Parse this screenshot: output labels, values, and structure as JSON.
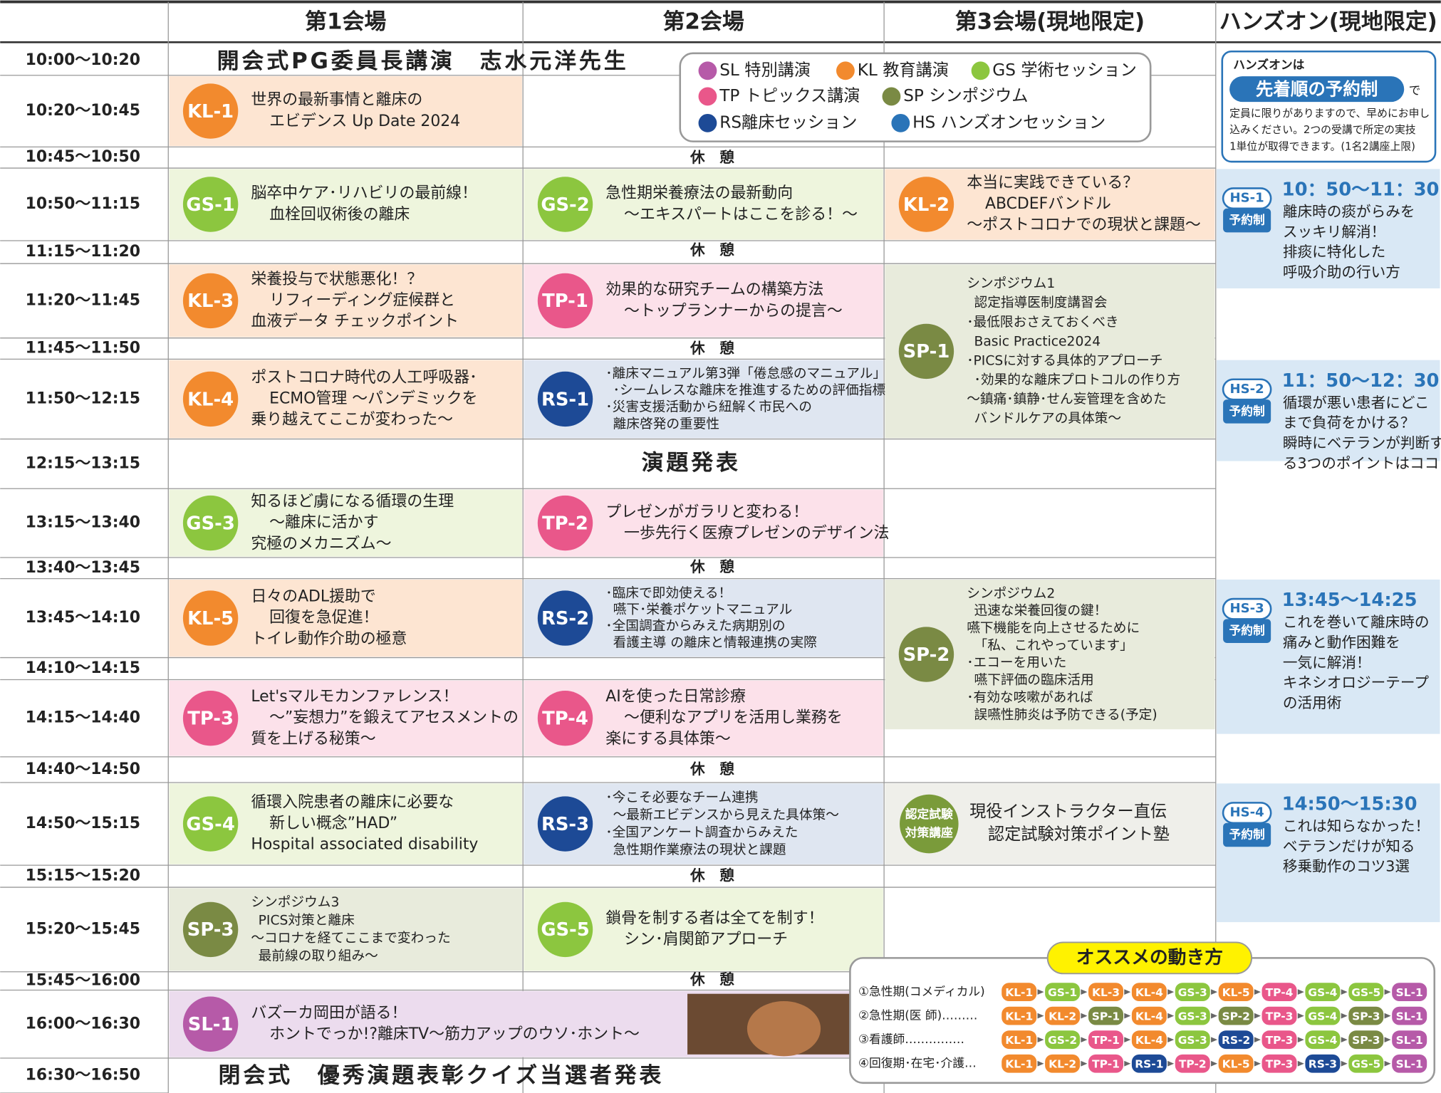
{
  "header": {
    "columns": [
      "第1会場",
      "第2会場",
      "第3会場(現地限定)",
      "ハンズオン(現地限定)"
    ]
  },
  "palette": {
    "KL": [
      "#f28a2e",
      "#fde5d2"
    ],
    "GS": [
      "#8cc63f",
      "#eef5dd"
    ],
    "TP": [
      "#e9578a",
      "#fce1ea"
    ],
    "RS": [
      "#1d4a96",
      "#dfe6f1"
    ],
    "SP": [
      "#7a8a44",
      "#e8ebdc"
    ],
    "SL": [
      "#b65aa8",
      "#ecdcee"
    ],
    "HS": [
      "#2a74b8",
      "#d9e8f5"
    ]
  },
  "times": [
    "10:00～10:20",
    "10:20～10:45",
    "10:45～10:50",
    "10:50～11:15",
    "11:15～11:20",
    "11:20～11:45",
    "11:45～11:50",
    "11:50～12:15",
    "12:15～13:15",
    "13:15～13:40",
    "13:40～13:45",
    "13:45～14:10",
    "14:10～14:15",
    "14:15～14:40",
    "14:40～14:50",
    "14:50～15:15",
    "15:15～15:20",
    "15:20～15:45",
    "15:45～16:00",
    "16:00～16:30",
    "16:30～16:50"
  ],
  "plenary": [
    "開会式PG委員長講演　志水元洋先生",
    "演題発表",
    "閉会式　優秀演題表彰クイズ当選者発表"
  ],
  "breaks": [
    "休　憩",
    "休　憩",
    "休　憩",
    "休　憩",
    "休　憩",
    "休　憩",
    "休　憩"
  ],
  "legend": [
    "SL 特別講演",
    "KL 教育講演",
    "GS 学術セッション",
    "TP トピックス講演",
    "SP シンポジウム",
    "RS離床セッション",
    "HS ハンズオンセッション"
  ],
  "sessions": [
    {
      "code": "KL-1",
      "lines": [
        "世界の最新事情と離床の",
        "エビデンス Up Date 2024"
      ]
    },
    {
      "code": "GS-1",
      "lines": [
        "脳卒中ケア･リハビリの最前線！",
        "血栓回収術後の離床"
      ]
    },
    {
      "code": "GS-2",
      "lines": [
        "急性期栄養療法の最新動向",
        "～エキスパートはここを診る！～"
      ]
    },
    {
      "code": "KL-2",
      "lines": [
        "本当に実践できている？",
        "ABCDEFバンドル",
        "～ポストコロナでの現状と課題～"
      ]
    },
    {
      "code": "KL-3",
      "lines": [
        "栄養投与で状態悪化！？",
        "リフィーディング症候群と",
        "血液データ チェックポイント"
      ]
    },
    {
      "code": "TP-1",
      "lines": [
        "効果的な研究チームの構築方法",
        "～トップランナーからの提言～"
      ]
    },
    {
      "code": "SP-1",
      "lines": [
        "シンポジウム1",
        "認定指導医制度講習会",
        "･最低限おさえておくべき",
        "Basic Practice2024",
        "･PICSに対する具体的アプローチ",
        "･効果的な離床プロトコルの作り方",
        "～鎮痛･鎮静･せん妄管理を含めた",
        "バンドルケアの具体策～"
      ]
    },
    {
      "code": "KL-4",
      "lines": [
        "ポストコロナ時代の人工呼吸器･",
        "ECMO管理 ～パンデミックを",
        "乗り越えてここが変わった～"
      ]
    },
    {
      "code": "RS-1",
      "lines": [
        "･離床マニュアル第3弾「倦怠感のマニュアル」",
        "･シームレスな離床を推進するための評価指標",
        "･災害支援活動から紐解く市民への",
        "離床啓発の重要性"
      ]
    },
    {
      "code": "GS-3",
      "lines": [
        "知るほど虜になる循環の生理",
        "～離床に活かす",
        "究極のメカニズム～"
      ]
    },
    {
      "code": "TP-2",
      "lines": [
        "プレゼンがガラリと変わる！",
        "一歩先行く医療プレゼンのデザイン法"
      ]
    },
    {
      "code": "KL-5",
      "lines": [
        "日々のADL援助で",
        "回復を急促進！",
        "トイレ動作介助の極意"
      ]
    },
    {
      "code": "RS-2",
      "lines": [
        "･臨床で即効使える！",
        "嚥下･栄養ポケットマニュアル",
        "･全国調査からみえた病期別の",
        "看護主導 の離床と情報連携の実際"
      ]
    },
    {
      "code": "SP-2",
      "lines": [
        "シンポジウム2",
        "迅速な栄養回復の鍵！",
        "嚥下機能を向上させるために",
        "「私、これやっています」",
        "･エコーを用いた",
        "嚥下評価の臨床活用",
        "･有効な咳嗽があれば",
        "誤嚥性肺炎は予防できる(予定)"
      ]
    },
    {
      "code": "TP-3",
      "lines": [
        "Let'sマルモカンファレンス！",
        "～”妄想力”を鍛えてアセスメントの",
        "質を上げる秘策～"
      ]
    },
    {
      "code": "TP-4",
      "lines": [
        "AIを使った日常診療",
        "～便利なアプリを活用し業務を",
        "楽にする具体策～"
      ]
    },
    {
      "code": "GS-4",
      "lines": [
        "循環入院患者の離床に必要な",
        "新しい概念”HAD”",
        "Hospital associated disability"
      ]
    },
    {
      "code": "RS-3",
      "lines": [
        "･今こそ必要なチーム連携",
        "～最新エビデンスから見えた具体策～",
        "･全国アンケート調査からみえた",
        "急性期作業療法の現状と課題"
      ]
    },
    {
      "code": "SP-3",
      "lines": [
        "シンポジウム3",
        "PICS対策と離床",
        "～コロナを経てここまで変わった",
        "最前線の取り組み～"
      ]
    },
    {
      "code": "GS-5",
      "lines": [
        "鎖骨を制する者は全てを制す！",
        "シン･肩関節アプローチ"
      ]
    },
    {
      "code": "SL-1",
      "lines": [
        "バズーカ岡田が語る！",
        "ホントでっか!?離床TV～筋力アップのウソ･ホント～"
      ]
    }
  ],
  "exam": {
    "badge": [
      "認定試験",
      "対策講座"
    ],
    "lines": [
      "現役インストラクター直伝",
      "認定試験対策ポイント塾"
    ]
  },
  "handson_note": {
    "title": "ハンズオンは",
    "highlight": "先着順の予約制",
    "suffix": "で",
    "lines": [
      "定員に限りがありますので、早めにお申し",
      "込みください。2つの受講で所定の実技",
      "1単位が取得できます。(1名2講座上限)"
    ]
  },
  "handson": [
    {
      "code": "HS-1",
      "badge": "予約制",
      "time": "10：50～11：30",
      "lines": [
        "離床時の痰がらみを",
        "スッキリ解消！",
        "排痰に特化した",
        "呼吸介助の行い方"
      ]
    },
    {
      "code": "HS-2",
      "badge": "予約制",
      "time": "11：50～12：30",
      "lines": [
        "循環が悪い患者にどこ",
        "まで負荷をかける？",
        "瞬時にベテランが判断す",
        "る3つのポイントはココ"
      ]
    },
    {
      "code": "HS-3",
      "badge": "予約制",
      "time": "13:45～14:25",
      "lines": [
        "これを巻いて離床時の",
        "痛みと動作困難を",
        "一気に解消！",
        "キネシオロジーテープ",
        "の活用術"
      ]
    },
    {
      "code": "HS-4",
      "badge": "予約制",
      "time": "14:50～15:30",
      "lines": [
        "これは知らなかった！",
        "ベテランだけが知る",
        "移乗動作のコツ3選"
      ]
    }
  ],
  "recommend": {
    "title": "オススメの動き方",
    "routes": [
      {
        "label": "①急性期(コメディカル)",
        "steps": [
          "KL-1",
          "GS-1",
          "KL-3",
          "KL-4",
          "GS-3",
          "KL-5",
          "TP-4",
          "GS-4",
          "GS-5",
          "SL-1"
        ]
      },
      {
        "label": "②急性期(医 師)………",
        "steps": [
          "KL-1",
          "KL-2",
          "SP-1",
          "KL-4",
          "GS-3",
          "SP-2",
          "TP-3",
          "GS-4",
          "SP-3",
          "SL-1"
        ]
      },
      {
        "label": "③看護師……………",
        "steps": [
          "KL-1",
          "GS-2",
          "TP-1",
          "KL-4",
          "GS-3",
          "RS-2",
          "TP-3",
          "GS-4",
          "SP-3",
          "SL-1"
        ]
      },
      {
        "label": "④回復期･在宅･介護…",
        "steps": [
          "KL-1",
          "KL-2",
          "TP-1",
          "RS-1",
          "TP-2",
          "KL-5",
          "TP-3",
          "RS-3",
          "GS-5",
          "SL-1"
        ]
      }
    ]
  }
}
